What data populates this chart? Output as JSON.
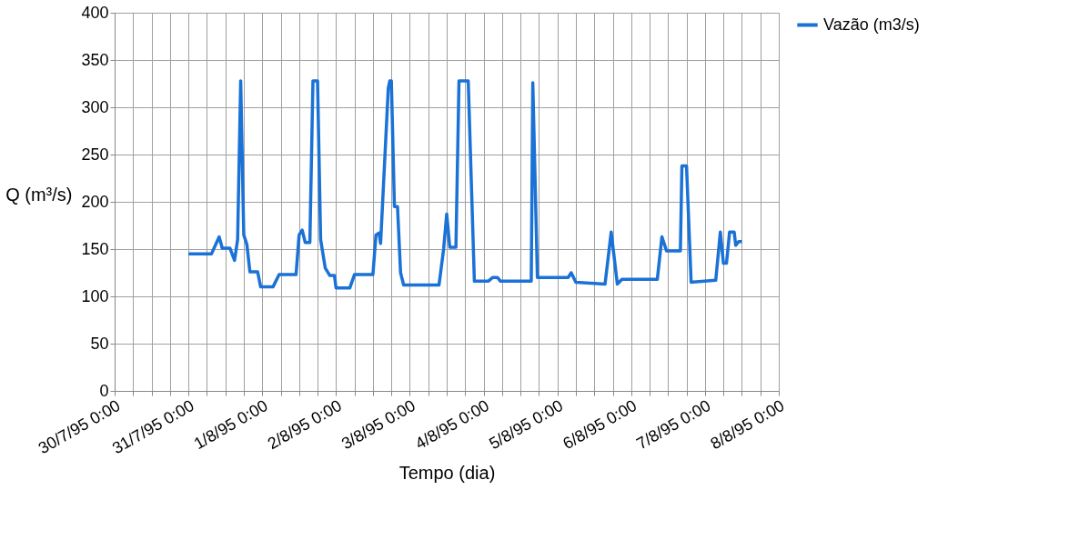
{
  "chart_data": {
    "type": "line",
    "xlabel": "Tempo (dia)",
    "ylabel": "Q (m³/s)",
    "xlim": [
      "1995-07-30T00:00",
      "1995-08-08T00:00"
    ],
    "xticks": [
      {
        "value": "1995-07-30T00:00",
        "label": "30/7/95 0:00"
      },
      {
        "value": "1995-07-30T06:00",
        "label": null
      },
      {
        "value": "1995-07-30T12:00",
        "label": null
      },
      {
        "value": "1995-07-30T18:00",
        "label": null
      },
      {
        "value": "1995-07-31T00:00",
        "label": "31/7/95 0:00"
      },
      {
        "value": "1995-07-31T06:00",
        "label": null
      },
      {
        "value": "1995-07-31T12:00",
        "label": null
      },
      {
        "value": "1995-07-31T18:00",
        "label": null
      },
      {
        "value": "1995-08-01T00:00",
        "label": "1/8/95 0:00"
      },
      {
        "value": "1995-08-01T06:00",
        "label": null
      },
      {
        "value": "1995-08-01T12:00",
        "label": null
      },
      {
        "value": "1995-08-01T18:00",
        "label": null
      },
      {
        "value": "1995-08-02T00:00",
        "label": "2/8/95 0:00"
      },
      {
        "value": "1995-08-02T06:00",
        "label": null
      },
      {
        "value": "1995-08-02T12:00",
        "label": null
      },
      {
        "value": "1995-08-02T18:00",
        "label": null
      },
      {
        "value": "1995-08-03T00:00",
        "label": "3/8/95 0:00"
      },
      {
        "value": "1995-08-03T06:00",
        "label": null
      },
      {
        "value": "1995-08-03T12:00",
        "label": null
      },
      {
        "value": "1995-08-03T18:00",
        "label": null
      },
      {
        "value": "1995-08-04T00:00",
        "label": "4/8/95 0:00"
      },
      {
        "value": "1995-08-04T06:00",
        "label": null
      },
      {
        "value": "1995-08-04T12:00",
        "label": null
      },
      {
        "value": "1995-08-04T18:00",
        "label": null
      },
      {
        "value": "1995-08-05T00:00",
        "label": "5/8/95 0:00"
      },
      {
        "value": "1995-08-05T06:00",
        "label": null
      },
      {
        "value": "1995-08-05T12:00",
        "label": null
      },
      {
        "value": "1995-08-05T18:00",
        "label": null
      },
      {
        "value": "1995-08-06T00:00",
        "label": "6/8/95 0:00"
      },
      {
        "value": "1995-08-06T06:00",
        "label": null
      },
      {
        "value": "1995-08-06T12:00",
        "label": null
      },
      {
        "value": "1995-08-06T18:00",
        "label": null
      },
      {
        "value": "1995-08-07T00:00",
        "label": "7/8/95 0:00"
      },
      {
        "value": "1995-08-07T06:00",
        "label": null
      },
      {
        "value": "1995-08-07T12:00",
        "label": null
      },
      {
        "value": "1995-08-07T18:00",
        "label": null
      },
      {
        "value": "1995-08-08T00:00",
        "label": "8/8/95 0:00"
      }
    ],
    "ylim": [
      0,
      400
    ],
    "yticks": [
      0,
      50,
      100,
      150,
      200,
      250,
      300,
      350,
      400
    ],
    "grid": true,
    "legend": "right",
    "line_style": "solid",
    "marker": "none",
    "series": [
      {
        "name": "Vazão (m3/s)",
        "color": "#1a72d6",
        "x": [
          "1995-07-31T00:00",
          "1995-07-31T07:30",
          "1995-07-31T10:00",
          "1995-07-31T11:00",
          "1995-07-31T13:30",
          "1995-07-31T15:00",
          "1995-07-31T16:00",
          "1995-07-31T17:00",
          "1995-07-31T18:00",
          "1995-07-31T19:00",
          "1995-07-31T20:00",
          "1995-07-31T22:30",
          "1995-07-31T23:30",
          "1995-08-01T03:30",
          "1995-08-01T05:30",
          "1995-08-01T11:00",
          "1995-08-01T12:00",
          "1995-08-01T13:00",
          "1995-08-01T14:00",
          "1995-08-01T15:30",
          "1995-08-01T16:30",
          "1995-08-01T18:00",
          "1995-08-01T19:00",
          "1995-08-01T20:30",
          "1995-08-01T22:00",
          "1995-08-01T23:30",
          "1995-08-02T00:00",
          "1995-08-02T04:30",
          "1995-08-02T06:00",
          "1995-08-02T12:00",
          "1995-08-02T13:00",
          "1995-08-02T14:00",
          "1995-08-02T14:30",
          "1995-08-02T17:00",
          "1995-08-02T17:30",
          "1995-08-02T18:00",
          "1995-08-02T19:00",
          "1995-08-02T20:00",
          "1995-08-02T21:00",
          "1995-08-02T22:00",
          "1995-08-03T09:30",
          "1995-08-03T11:00",
          "1995-08-03T12:00",
          "1995-08-03T13:00",
          "1995-08-03T15:00",
          "1995-08-03T16:00",
          "1995-08-03T19:00",
          "1995-08-03T21:00",
          "1995-08-04T01:30",
          "1995-08-04T03:00",
          "1995-08-04T04:30",
          "1995-08-04T05:30",
          "1995-08-04T15:30",
          "1995-08-04T16:00",
          "1995-08-04T17:30",
          "1995-08-05T03:30",
          "1995-08-05T04:30",
          "1995-08-05T06:00",
          "1995-08-05T15:30",
          "1995-08-05T17:30",
          "1995-08-05T19:30",
          "1995-08-05T21:00",
          "1995-08-06T08:30",
          "1995-08-06T10:00",
          "1995-08-06T11:30",
          "1995-08-06T16:00",
          "1995-08-06T16:30",
          "1995-08-06T18:00",
          "1995-08-06T19:30",
          "1995-08-07T03:30",
          "1995-08-07T05:00",
          "1995-08-07T06:00",
          "1995-08-07T07:00",
          "1995-08-07T08:00",
          "1995-08-07T09:30",
          "1995-08-07T10:00",
          "1995-08-07T11:00",
          "1995-08-07T12:00"
        ],
        "values": [
          145,
          145,
          163,
          151,
          151,
          138,
          160,
          328,
          165,
          155,
          126,
          126,
          110,
          110,
          123,
          123,
          165,
          170,
          157,
          157,
          328,
          328,
          160,
          130,
          122,
          122,
          109,
          109,
          123,
          123,
          165,
          167,
          156,
          320,
          328,
          328,
          195,
          195,
          125,
          112,
          112,
          150,
          187,
          152,
          152,
          328,
          328,
          116,
          116,
          120,
          120,
          116,
          116,
          326,
          120,
          120,
          125,
          115,
          113,
          168,
          113,
          118,
          118,
          163,
          148,
          148,
          238,
          238,
          115,
          117,
          168,
          135,
          135,
          168,
          168,
          154,
          158,
          158
        ]
      }
    ]
  }
}
